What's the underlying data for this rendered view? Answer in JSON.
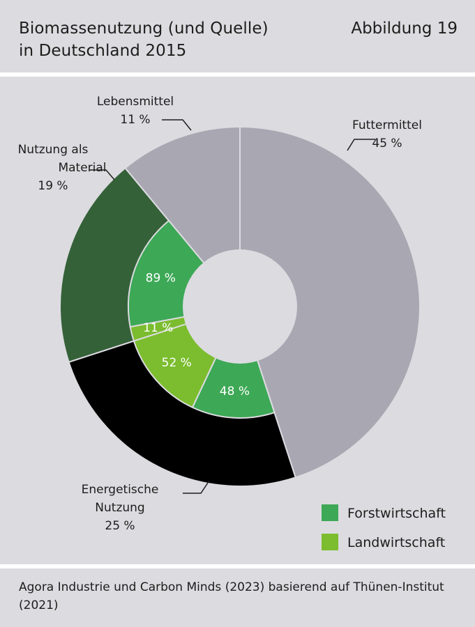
{
  "header": {
    "title": "Biomassenutzung (und Quelle)\nin Deutschland 2015",
    "figure_label": "Abbildung 19"
  },
  "footer": {
    "source": "Agora Industrie und Carbon Minds (2023) basierend auf Thünen-Institut (2021)"
  },
  "colors": {
    "background": "#dcdbe0",
    "futtermittel": "#a9a8b2",
    "energetische": "#000000",
    "material": "#356139",
    "lebensmittel": "#a9a8b2",
    "forstwirtschaft": "#3da856",
    "landwirtschaft": "#7bbd2e"
  },
  "chart_data": {
    "type": "pie",
    "variant": "nested-donut",
    "outer": [
      {
        "label_lines": [
          "Futtermittel"
        ],
        "value_label": "45 %",
        "value": 45,
        "color_key": "futtermittel"
      },
      {
        "label_lines": [
          "Energetische",
          "Nutzung"
        ],
        "value_label": "25 %",
        "value": 25,
        "color_key": "energetische"
      },
      {
        "label_lines": [
          "Nutzung als",
          "Material"
        ],
        "value_label": "19 %",
        "value": 19,
        "color_key": "material"
      },
      {
        "label_lines": [
          "Lebensmittel"
        ],
        "value_label": "11 %",
        "value": 11,
        "color_key": "lebensmittel"
      }
    ],
    "inner": [
      {
        "parent": "Energetische Nutzung",
        "source": "Forstwirtschaft",
        "value": 48,
        "value_label": "48 %"
      },
      {
        "parent": "Energetische Nutzung",
        "source": "Landwirtschaft",
        "value": 52,
        "value_label": "52 %"
      },
      {
        "parent": "Nutzung als Material",
        "source": "Landwirtschaft",
        "value": 11,
        "value_label": "11 %"
      },
      {
        "parent": "Nutzung als Material",
        "source": "Forstwirtschaft",
        "value": 89,
        "value_label": "89 %"
      }
    ],
    "legend": {
      "placement": "bottom-right",
      "items": [
        {
          "label": "Forstwirtschaft",
          "color_key": "forstwirtschaft"
        },
        {
          "label": "Landwirtschaft",
          "color_key": "landwirtschaft"
        }
      ]
    }
  }
}
